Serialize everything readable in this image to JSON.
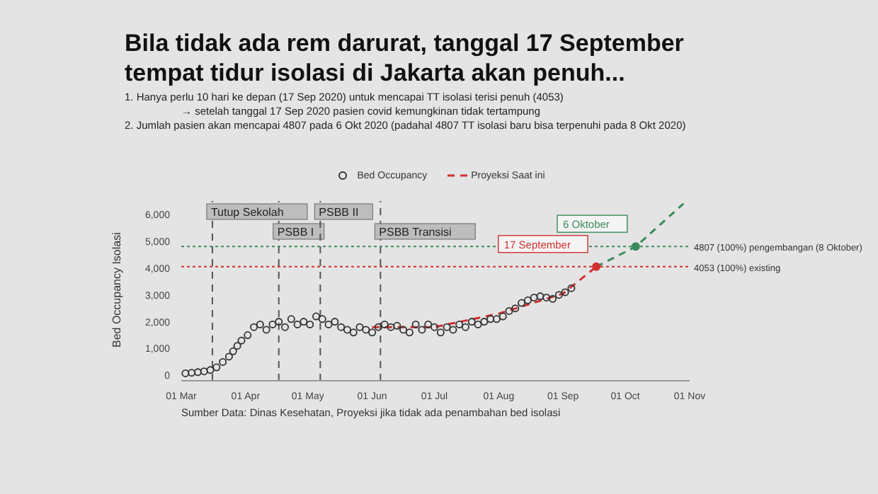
{
  "chart_data": {
    "type": "scatter",
    "title": "Bila tidak ada rem darurat, tanggal 17 September\ntempat tidur isolasi di Jakarta akan penuh...",
    "ylabel": "Bed Occupancy Isolasi",
    "xlim": [
      "2020-03-01",
      "2020-11-01"
    ],
    "xticks": [
      {
        "value": "2020-03-01",
        "label": "01 Mar"
      },
      {
        "value": "2020-04-01",
        "label": "01 Apr"
      },
      {
        "value": "2020-05-01",
        "label": "01 May"
      },
      {
        "value": "2020-06-01",
        "label": "01 Jun"
      },
      {
        "value": "2020-07-01",
        "label": "01 Jul"
      },
      {
        "value": "2020-08-01",
        "label": "01 Aug"
      },
      {
        "value": "2020-09-01",
        "label": "01 Sep"
      },
      {
        "value": "2020-10-01",
        "label": "01 Oct"
      },
      {
        "value": "2020-11-01",
        "label": "01 Nov"
      }
    ],
    "ylim": [
      -200,
      6500
    ],
    "yticks": [
      0,
      {
        "value": 1000,
        "label": "1,000"
      },
      {
        "value": 2000,
        "label": "2,000"
      },
      {
        "value": 3000,
        "label": "3,000"
      },
      {
        "value": 4000,
        "label": "4,000"
      },
      {
        "value": 5000,
        "label": "5,000"
      },
      {
        "value": 6000,
        "label": "6,000"
      }
    ],
    "grid": false,
    "legend": "top",
    "series": [
      {
        "name": "Bed Occupancy",
        "type": "scatter",
        "color": "#333333",
        "marker": "circle",
        "x": [
          "2020-03-03",
          "2020-03-06",
          "2020-03-09",
          "2020-03-12",
          "2020-03-15",
          "2020-03-18",
          "2020-03-21",
          "2020-03-24",
          "2020-03-26",
          "2020-03-28",
          "2020-03-30",
          "2020-04-02",
          "2020-04-05",
          "2020-04-08",
          "2020-04-11",
          "2020-04-14",
          "2020-04-17",
          "2020-04-20",
          "2020-04-23",
          "2020-04-26",
          "2020-04-29",
          "2020-05-02",
          "2020-05-05",
          "2020-05-08",
          "2020-05-11",
          "2020-05-14",
          "2020-05-17",
          "2020-05-20",
          "2020-05-23",
          "2020-05-26",
          "2020-05-29",
          "2020-06-01",
          "2020-06-04",
          "2020-06-07",
          "2020-06-10",
          "2020-06-13",
          "2020-06-16",
          "2020-06-19",
          "2020-06-22",
          "2020-06-25",
          "2020-06-28",
          "2020-07-01",
          "2020-07-04",
          "2020-07-07",
          "2020-07-10",
          "2020-07-13",
          "2020-07-16",
          "2020-07-19",
          "2020-07-22",
          "2020-07-25",
          "2020-07-28",
          "2020-07-31",
          "2020-08-03",
          "2020-08-06",
          "2020-08-09",
          "2020-08-12",
          "2020-08-15",
          "2020-08-18",
          "2020-08-21",
          "2020-08-24",
          "2020-08-27",
          "2020-08-30",
          "2020-09-02",
          "2020-09-05"
        ],
        "values": [
          80,
          100,
          120,
          150,
          200,
          300,
          500,
          700,
          900,
          1100,
          1300,
          1500,
          1800,
          1900,
          1700,
          1900,
          2000,
          1800,
          2100,
          1900,
          2000,
          1900,
          2200,
          2100,
          1900,
          2000,
          1800,
          1700,
          1600,
          1800,
          1700,
          1600,
          1800,
          1900,
          1800,
          1850,
          1700,
          1600,
          1900,
          1700,
          1900,
          1800,
          1600,
          1800,
          1700,
          1900,
          1800,
          2000,
          1900,
          2000,
          2100,
          2100,
          2200,
          2400,
          2500,
          2700,
          2800,
          2900,
          2950,
          2900,
          2850,
          3000,
          3100,
          3250
        ]
      },
      {
        "name": "Proyeksi Saat ini",
        "type": "line",
        "color": "#d03030",
        "marker": "none",
        "line_style": "dashed",
        "x": [
          "2020-06-01",
          "2020-07-01",
          "2020-08-01",
          "2020-09-01",
          "2020-09-17"
        ],
        "values": [
          1800,
          1800,
          2300,
          3050,
          4050
        ]
      },
      {
        "type": "line",
        "color": "#3a8a5a",
        "marker": "none",
        "line_style": "dashed",
        "x": [
          "2020-09-17",
          "2020-10-06",
          "2020-10-29"
        ],
        "values": [
          4050,
          4800,
          6400
        ]
      }
    ],
    "ref_lines": [
      {
        "axis": "x",
        "value": "2020-03-16",
        "label": "Tutup Sekolah",
        "color": "#555555",
        "line_style": "dashed"
      },
      {
        "axis": "x",
        "value": "2020-04-17",
        "label": "PSBB I",
        "color": "#555555",
        "line_style": "dashed"
      },
      {
        "axis": "x",
        "value": "2020-05-07",
        "label": "PSBB II",
        "color": "#555555",
        "line_style": "dashed"
      },
      {
        "axis": "x",
        "value": "2020-06-05",
        "label": "PSBB Transisi",
        "color": "#555555",
        "line_style": "dashed"
      },
      {
        "axis": "y",
        "value": 4807,
        "label": "4807 (100%) pengembangan (8 Oktober)",
        "color": "#3a8a5a",
        "line_style": "dotted"
      },
      {
        "axis": "y",
        "value": 4053,
        "label": "4053 (100%) existing",
        "color": "#d03030",
        "line_style": "dotted"
      }
    ],
    "annotations": [
      "1. Hanya perlu 10 hari ke depan (17 Sep 2020) untuk mencapai TT isolasi terisi penuh (4053)",
      "→ setelah tanggal 17 Sep 2020 pasien covid kemungkinan tidak tertampung",
      "2. Jumlah pasien akan mencapai 4807 pada 6 Okt 2020 (padahal 4807 TT isolasi baru bisa terpenuhi pada 8 Okt 2020)",
      {
        "text": "6 Oktober",
        "x": "2020-10-06",
        "y": 4807
      },
      {
        "text": "17 September",
        "x": "2020-09-17",
        "y": 4053
      },
      "Sumber Data: Dinas Kesehatan, Proyeksi jika tidak ada penambahan bed isolasi"
    ]
  }
}
